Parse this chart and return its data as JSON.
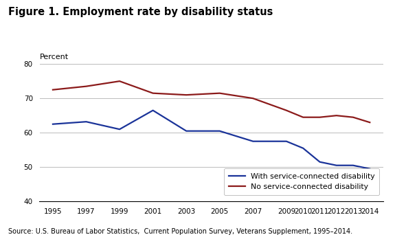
{
  "title": "Figure 1. Employment rate by disability status",
  "ylabel": "Percent",
  "source": "Source: U.S. Bureau of Labor Statistics,  Current Population Survey, Veterans Supplement, 1995–2014.",
  "ylim": [
    40,
    80
  ],
  "yticks": [
    40,
    50,
    60,
    70,
    80
  ],
  "x_labels": [
    "1995",
    "1997",
    "1999",
    "2001",
    "2003",
    "2005",
    "2007",
    "2009",
    "2010",
    "2011",
    "2012",
    "2013",
    "2014"
  ],
  "x_values": [
    1995,
    1997,
    1999,
    2001,
    2003,
    2005,
    2007,
    2009,
    2010,
    2011,
    2012,
    2013,
    2014
  ],
  "blue_line": {
    "label": "With service-connected disability",
    "color": "#1a3399",
    "values": [
      62.5,
      63.2,
      61.0,
      66.5,
      60.5,
      60.5,
      57.5,
      57.5,
      55.5,
      51.5,
      50.5,
      50.5,
      49.5
    ]
  },
  "red_line": {
    "label": "No service-connected disability",
    "color": "#8b1a1a",
    "values": [
      72.5,
      73.5,
      75.0,
      71.5,
      71.0,
      71.5,
      70.0,
      66.5,
      64.5,
      64.5,
      65.0,
      64.5,
      63.0
    ]
  },
  "background_color": "#ffffff",
  "grid_color": "#bbbbbb",
  "line_width": 1.6,
  "xlim_left": 1994.2,
  "xlim_right": 2014.8
}
